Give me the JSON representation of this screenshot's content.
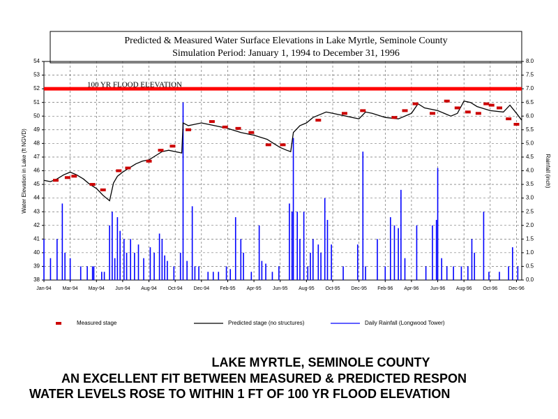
{
  "chart_data": {
    "type": "line",
    "title": [
      "Predicted & Measured Water Surface Elevations in Lake Myrtle, Seminole County",
      "Simulation Period:  January 1, 1994 to December 31, 1996"
    ],
    "y_label": "Water Elevation in Lake (ft NGVD)",
    "y2_label": "Rainfall (inch)",
    "xlim": [
      0,
      36.4
    ],
    "xticks": [
      {
        "value": 0,
        "label": "Jan-94"
      },
      {
        "value": 2,
        "label": "Mar-94"
      },
      {
        "value": 4,
        "label": "May-94"
      },
      {
        "value": 6,
        "label": "Jun-94"
      },
      {
        "value": 8,
        "label": "Aug-94"
      },
      {
        "value": 10,
        "label": "Oct-94"
      },
      {
        "value": 12,
        "label": "Dec-94"
      },
      {
        "value": 14,
        "label": "Feb-95"
      },
      {
        "value": 16,
        "label": "Apr-95"
      },
      {
        "value": 18,
        "label": "Jun-95"
      },
      {
        "value": 20,
        "label": "Aug-95"
      },
      {
        "value": 22,
        "label": "Oct-95"
      },
      {
        "value": 24,
        "label": "Dec-95"
      },
      {
        "value": 26,
        "label": "Feb-96"
      },
      {
        "value": 28,
        "label": "Apr-96"
      },
      {
        "value": 30,
        "label": "Jun-96"
      },
      {
        "value": 32,
        "label": "Aug-96"
      },
      {
        "value": 34,
        "label": "Oct-96"
      },
      {
        "value": 36,
        "label": "Dec-96"
      }
    ],
    "ylim": [
      38,
      54
    ],
    "yticks": [
      38,
      39,
      40,
      41,
      42,
      43,
      44,
      45,
      46,
      47,
      48,
      49,
      50,
      51,
      52,
      53,
      54
    ],
    "y2lim": [
      0,
      8
    ],
    "y2ticks": [
      {
        "value": 0,
        "label": "0.0"
      },
      {
        "value": 0.5,
        "label": "0.5"
      },
      {
        "value": 1,
        "label": "1.0"
      },
      {
        "value": 1.5,
        "label": "1.5"
      },
      {
        "value": 2,
        "label": "2.0"
      },
      {
        "value": 2.5,
        "label": "2.5"
      },
      {
        "value": 3,
        "label": "3.0"
      },
      {
        "value": 3.5,
        "label": "3.5"
      },
      {
        "value": 4,
        "label": "4.0"
      },
      {
        "value": 4.5,
        "label": "4.5"
      },
      {
        "value": 5,
        "label": "5.0"
      },
      {
        "value": 5.5,
        "label": "5.5"
      },
      {
        "value": 6,
        "label": "6.0"
      },
      {
        "value": 6.5,
        "label": "6.5"
      },
      {
        "value": 7,
        "label": "7.0"
      },
      {
        "value": 7.5,
        "label": "7.5"
      },
      {
        "value": 8,
        "label": "8.0"
      }
    ],
    "grid": true,
    "reference_lines": [
      {
        "value": 52,
        "label": "100 YR FLOOD ELEVATION",
        "color": "#ff0000"
      }
    ],
    "series": [
      {
        "name": "Measured stage",
        "type": "scatter",
        "color": "#cc0000",
        "x": [
          0.9,
          1.8,
          2.3,
          3.7,
          4.5,
          5.7,
          6.4,
          8.0,
          8.9,
          9.8,
          11.0,
          12.8,
          13.8,
          14.8,
          15.8,
          17.1,
          18.2,
          20.9,
          22.9,
          24.3,
          26.7,
          27.5,
          28.3,
          29.6,
          30.7,
          31.5,
          32.3,
          33.1,
          33.7,
          34.1,
          34.7,
          35.4,
          36.0
        ],
        "values": [
          45.3,
          45.5,
          45.6,
          45.0,
          44.6,
          46.0,
          46.2,
          46.7,
          47.5,
          47.8,
          49.0,
          49.6,
          49.2,
          49.1,
          48.8,
          47.9,
          47.9,
          49.7,
          50.2,
          50.4,
          49.9,
          50.4,
          50.9,
          50.2,
          51.1,
          50.6,
          50.3,
          50.2,
          50.9,
          50.8,
          50.6,
          49.8,
          49.4
        ]
      },
      {
        "name": "Predicted stage (no structures)",
        "type": "line",
        "color": "#000000",
        "x": [
          0,
          0.5,
          1,
          1.5,
          2,
          2.5,
          3,
          3.5,
          4,
          4.5,
          5,
          5.3,
          5.6,
          6,
          6.5,
          7,
          7.5,
          8,
          8.5,
          9,
          9.5,
          10,
          10.5,
          10.6,
          11,
          11.5,
          12,
          13,
          14,
          15,
          16,
          17,
          17.5,
          18,
          18.5,
          18.8,
          19,
          19.5,
          20,
          20.5,
          21,
          21.5,
          22,
          23,
          24,
          24.5,
          25,
          26,
          27,
          28,
          28.5,
          29,
          30,
          31,
          31.5,
          32,
          32.5,
          33,
          34,
          35,
          35.5,
          36,
          36.4
        ],
        "values": [
          45.3,
          45.2,
          45.4,
          45.7,
          45.9,
          45.7,
          45.4,
          45.0,
          44.7,
          44.2,
          43.8,
          45.1,
          45.6,
          45.9,
          46.2,
          46.5,
          46.7,
          46.8,
          47.1,
          47.4,
          47.5,
          47.4,
          47.3,
          49.5,
          49.3,
          49.4,
          49.5,
          49.3,
          49.1,
          48.8,
          48.6,
          48.3,
          48.0,
          47.7,
          47.5,
          47.4,
          48.8,
          49.3,
          49.5,
          49.9,
          50.1,
          50.3,
          50.2,
          50.0,
          49.8,
          50.3,
          50.2,
          49.9,
          49.8,
          50.2,
          50.9,
          50.6,
          50.4,
          50.0,
          50.2,
          51.1,
          51.0,
          50.7,
          50.4,
          50.3,
          50.8,
          50.2,
          49.7
        ]
      },
      {
        "name": "Daily Rainfall (Longwood Tower)",
        "type": "bar",
        "axis": "y2",
        "color": "#0000ff",
        "x": [
          0.0,
          0.5,
          1.0,
          1.4,
          1.6,
          2.0,
          2.8,
          3.3,
          3.7,
          3.8,
          4.4,
          4.6,
          5.0,
          5.2,
          5.4,
          5.6,
          5.8,
          6.1,
          6.3,
          6.6,
          6.9,
          7.2,
          7.6,
          8.1,
          8.4,
          8.8,
          9.0,
          9.2,
          9.4,
          9.9,
          10.4,
          10.6,
          10.9,
          11.3,
          11.5,
          11.8,
          12.5,
          12.9,
          13.3,
          13.9,
          14.2,
          14.6,
          15.0,
          15.2,
          15.8,
          16.4,
          16.6,
          16.9,
          17.4,
          17.9,
          18.7,
          18.9,
          19.0,
          19.3,
          19.5,
          19.8,
          20.1,
          20.3,
          20.5,
          20.9,
          21.1,
          21.4,
          21.6,
          21.9,
          22.8,
          23.9,
          24.3,
          24.5,
          25.4,
          26.0,
          26.4,
          26.7,
          27.0,
          27.2,
          27.5,
          28.4,
          29.1,
          29.6,
          29.9,
          30.0,
          30.3,
          30.7,
          31.2,
          31.8,
          32.3,
          32.6,
          32.8,
          33.5,
          33.9,
          34.7,
          35.4,
          35.7,
          36.1
        ],
        "values": [
          1.5,
          0.8,
          1.5,
          2.8,
          1.0,
          0.8,
          0.5,
          0.5,
          0.5,
          0.5,
          0.3,
          0.3,
          2.0,
          2.5,
          0.8,
          2.3,
          1.8,
          1.5,
          1.0,
          1.5,
          1.0,
          1.3,
          0.8,
          1.2,
          1.0,
          1.7,
          1.5,
          0.9,
          0.7,
          0.5,
          1.0,
          6.5,
          0.7,
          2.7,
          0.5,
          0.5,
          0.3,
          0.3,
          0.3,
          0.5,
          0.4,
          2.3,
          1.5,
          1.0,
          0.3,
          2.0,
          0.7,
          0.6,
          0.3,
          0.5,
          2.8,
          2.5,
          5.2,
          2.5,
          1.5,
          2.5,
          0.5,
          1.0,
          1.5,
          1.3,
          1.0,
          3.0,
          2.2,
          1.3,
          0.5,
          1.3,
          4.7,
          0.5,
          1.5,
          0.5,
          2.3,
          2.0,
          1.9,
          3.3,
          0.8,
          2.0,
          0.5,
          2.0,
          2.2,
          4.1,
          0.8,
          0.5,
          0.5,
          0.5,
          0.5,
          1.5,
          1.0,
          2.5,
          0.3,
          0.3,
          0.5,
          1.2,
          0.5
        ]
      }
    ],
    "footer": [
      "LAKE MYRTLE, SEMINOLE COUNTY",
      "AN EXCELLENT FIT BETWEEN MEASURED & PREDICTED RESPON",
      "WATER LEVELS ROSE TO WITHIN 1 FT OF 100 YR FLOOD ELEVATION"
    ]
  }
}
